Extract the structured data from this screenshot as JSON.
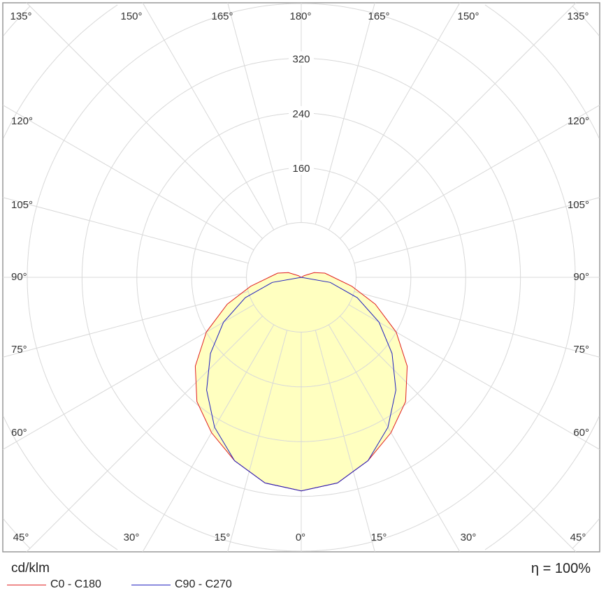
{
  "chart_data": {
    "type": "polar",
    "unit_label": "cd/klm",
    "efficiency_label": "η = 100%",
    "radial_ticks": [
      80,
      160,
      240,
      320,
      400,
      480,
      560
    ],
    "radial_tick_labels": [
      "160",
      "240",
      "320"
    ],
    "angle_step_deg": 15,
    "angle_labels": {
      "bottom": [
        "45°",
        "30°",
        "15°",
        "0°",
        "15°",
        "30°",
        "45°"
      ],
      "left": [
        "60°",
        "75°",
        "90°",
        "105°",
        "120°"
      ],
      "right": [
        "60°",
        "75°",
        "90°",
        "105°",
        "120°"
      ],
      "top": [
        "135°",
        "150°",
        "165°",
        "180°",
        "165°",
        "150°",
        "135°"
      ]
    },
    "grid": true,
    "legend_placement": "bottom-left",
    "angles_deg": [
      0,
      10,
      20,
      30,
      40,
      50,
      60,
      70,
      80,
      90,
      100,
      110,
      120,
      135,
      150,
      165,
      180
    ],
    "series": [
      {
        "name": "C0 - C180",
        "color": "#e02020",
        "values": [
          312,
          305,
          285,
          262,
          237,
          202,
          160,
          115,
          75,
          47,
          35,
          20,
          5,
          0,
          0,
          0,
          0
        ]
      },
      {
        "name": "C90 - C270",
        "color": "#2020c0",
        "values": [
          312,
          305,
          285,
          253,
          215,
          173,
          131,
          87,
          43,
          0,
          0,
          0,
          0,
          0,
          0,
          0,
          0
        ]
      }
    ],
    "fill_color": "#ffffc0"
  }
}
